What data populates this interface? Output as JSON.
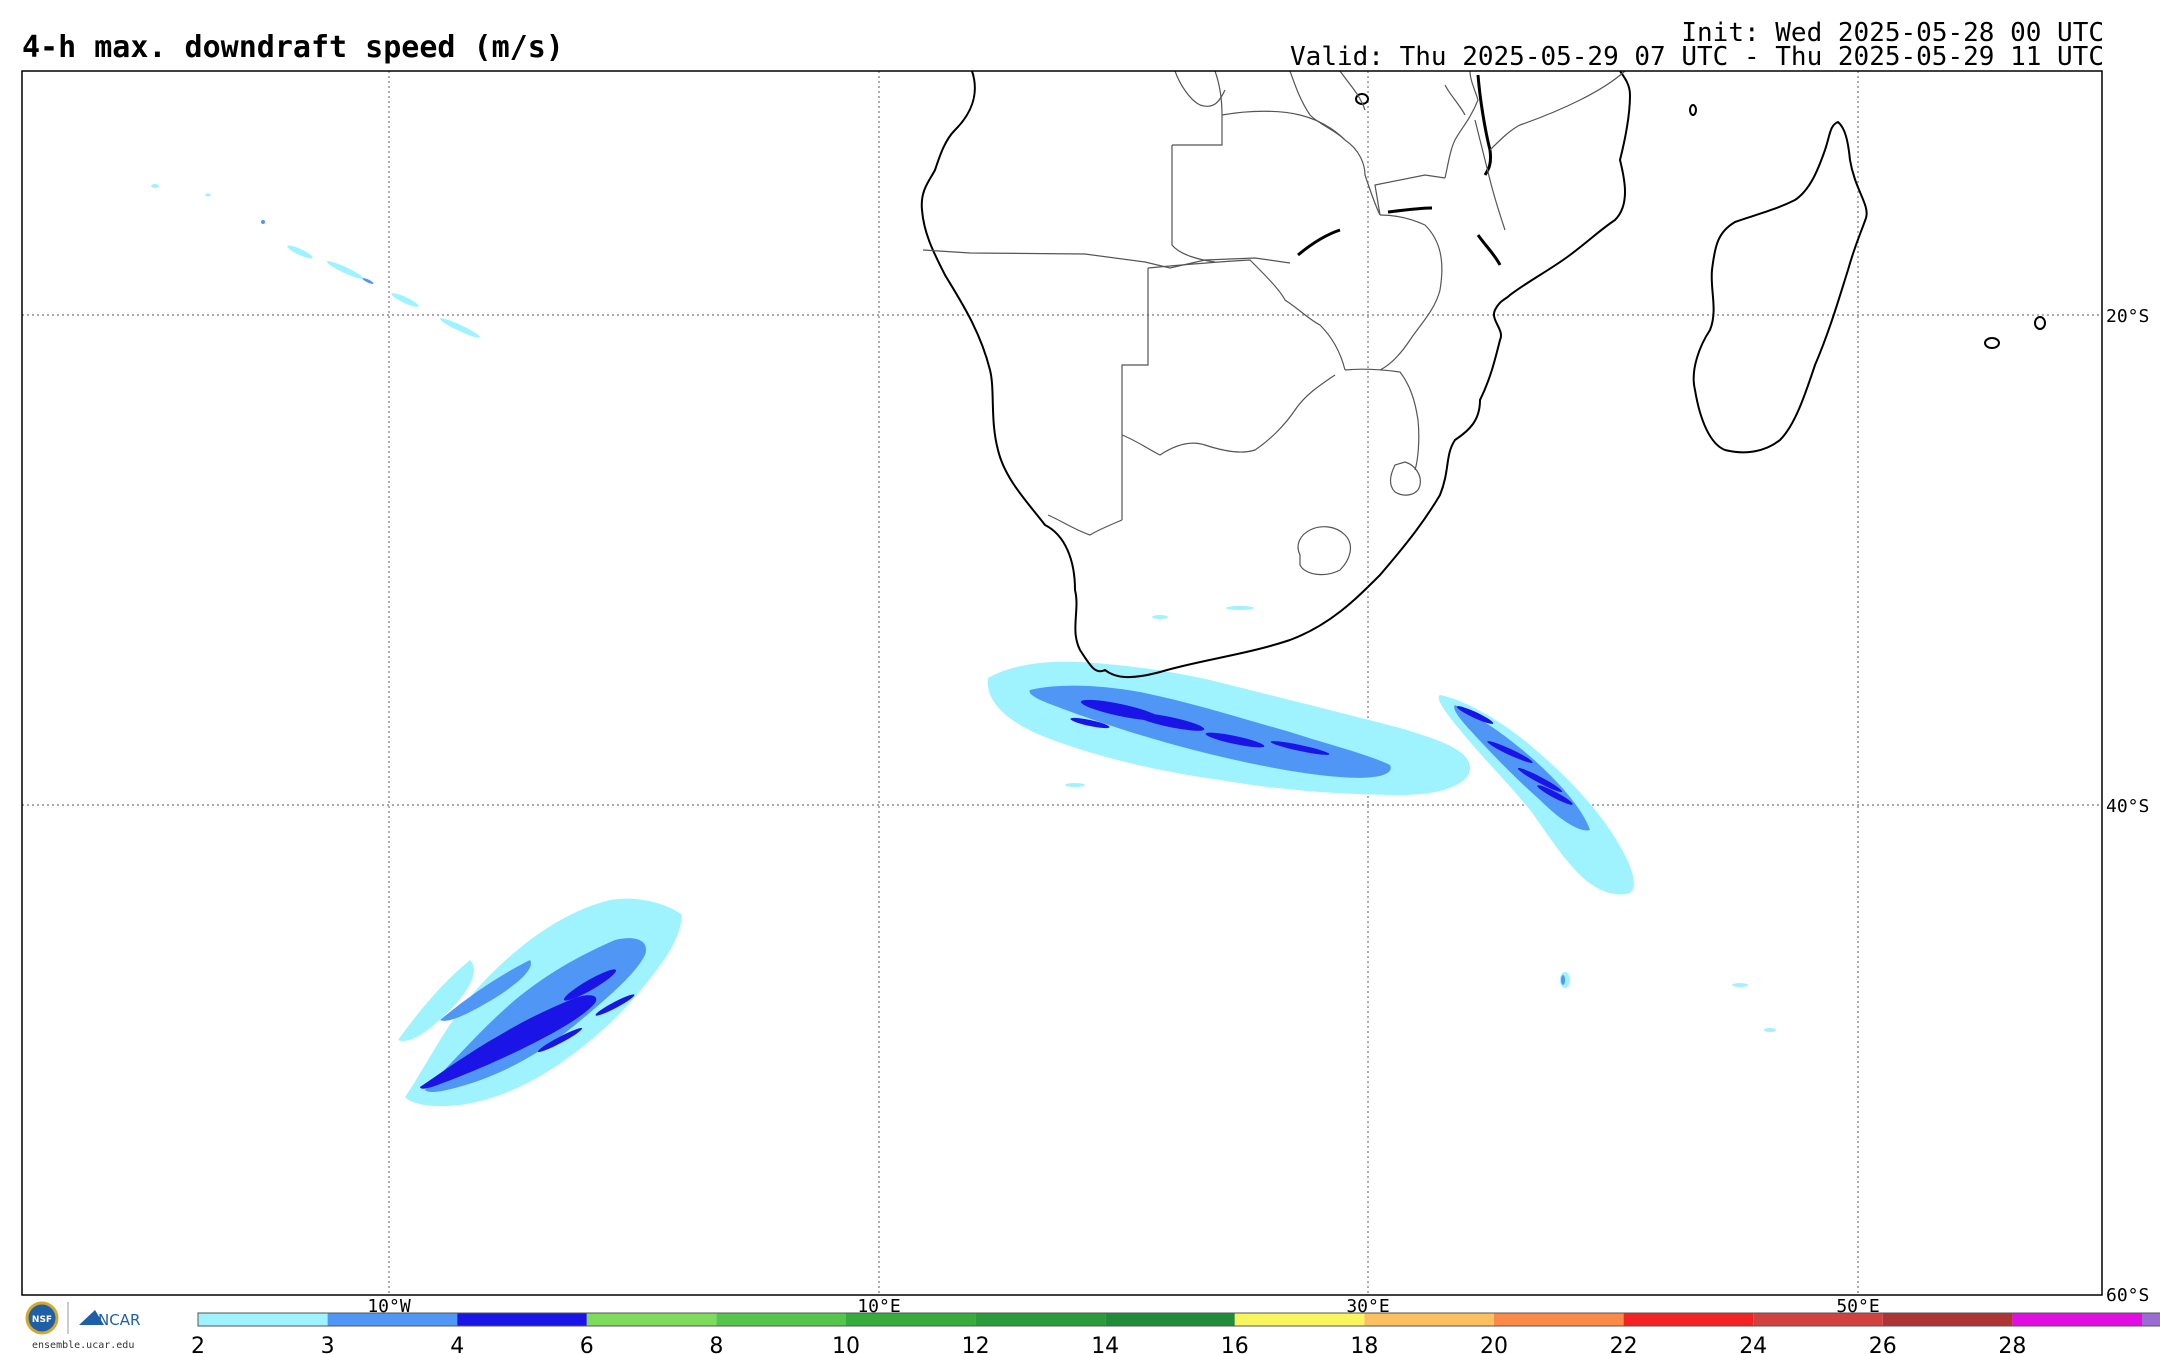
{
  "header": {
    "title": "4-h max. downdraft speed (m/s)",
    "init": "Init: Wed 2025-05-28 00 UTC",
    "valid": "Valid: Thu 2025-05-29 07 UTC - Thu 2025-05-29 11 UTC"
  },
  "map": {
    "lat_labels": [
      "20°S",
      "40°S",
      "60°S"
    ],
    "lon_labels": [
      "10°W",
      "10°E",
      "30°E",
      "50°E"
    ],
    "lon_range_deg": [
      -25,
      60
    ],
    "lat_range_deg": [
      -10,
      -60
    ],
    "gridlines": "dotted"
  },
  "colorbar": {
    "ticks": [
      "2",
      "3",
      "4",
      "6",
      "8",
      "10",
      "12",
      "14",
      "16",
      "18",
      "20",
      "22",
      "24",
      "26",
      "28"
    ],
    "colors": [
      "#9ff3ff",
      "#4f96f5",
      "#1a15e6",
      "#7ddc5c",
      "#55c64b",
      "#36ad3a",
      "#2a9a3a",
      "#228b3a",
      "#f9f560",
      "#fbc160",
      "#fb8a48",
      "#f42323",
      "#d24040",
      "#ad3434",
      "#e00ee0",
      "#9a6bd3"
    ]
  },
  "logo": {
    "nsf": "NSF",
    "ncar": "NCAR",
    "url": "ensemble.ucar.edu"
  }
}
